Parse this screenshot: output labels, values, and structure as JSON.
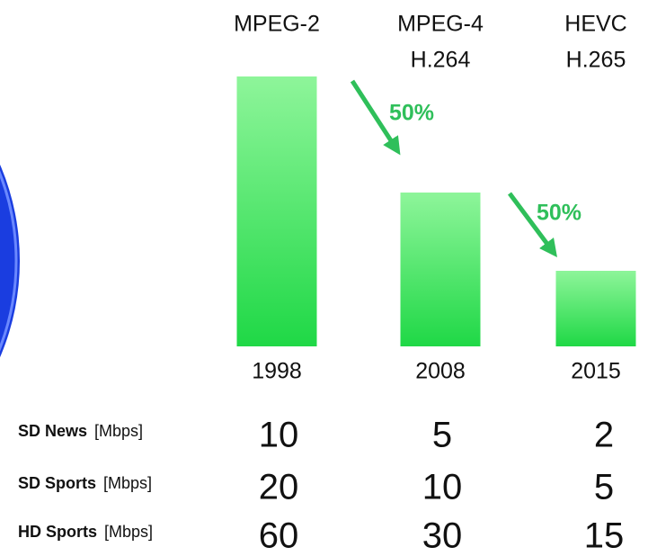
{
  "chart_data": {
    "type": "bar",
    "categories": [
      "1998",
      "2008",
      "2015"
    ],
    "codecs": [
      [
        "MPEG-2"
      ],
      [
        "MPEG-4",
        "H.264"
      ],
      [
        "HEVC",
        "H.265"
      ]
    ],
    "values": [
      100,
      57,
      28
    ],
    "ylim": [
      0,
      100
    ],
    "color_top": "#8ef59a",
    "color_bottom": "#1fd846",
    "annotations": [
      "50%",
      "50%"
    ]
  },
  "table": {
    "rows": [
      {
        "name": "SD News",
        "unit": "[Mbps]",
        "values": [
          10,
          5,
          2
        ]
      },
      {
        "name": "SD Sports",
        "unit": "[Mbps]",
        "values": [
          20,
          10,
          5
        ]
      },
      {
        "name": "HD Sports",
        "unit": "[Mbps]",
        "values": [
          60,
          30,
          15
        ]
      }
    ]
  }
}
